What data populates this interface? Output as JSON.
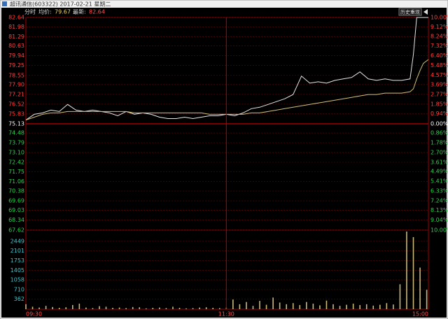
{
  "chart_data": [
    {
      "type": "line",
      "title": "超讯通信(603322) 2017-02-21 星期二",
      "mode": "分时",
      "readouts": [
        {
          "label": "均价:",
          "value": 79.67
        },
        {
          "label": "最新:",
          "value": 82.64
        }
      ],
      "button": "历史重现",
      "reference": 75.13,
      "xlim": [
        0,
        241
      ],
      "xticks": [
        {
          "value": 0,
          "label": "09:30"
        },
        {
          "value": 120,
          "label": "11:30"
        },
        {
          "value": 241,
          "label": "15:00"
        }
      ],
      "ylim": [
        67.62,
        82.64
      ],
      "yticks": [
        82.64,
        81.98,
        81.29,
        80.63,
        79.94,
        79.25,
        78.55,
        {
          "value": 77.9,
          "label": "77.90"
        },
        77.21,
        76.52,
        75.83,
        75.13,
        74.48,
        73.79,
        {
          "value": 73.1,
          "label": "73.10"
        },
        72.42,
        71.75,
        71.06,
        70.38,
        69.69,
        69.03,
        68.34,
        67.62
      ],
      "y2lim": [
        -10,
        10
      ],
      "y2ticks": [
        {
          "value": 10,
          "label": "10.00%"
        },
        {
          "value": 9.12,
          "label": "9.12%"
        },
        {
          "value": 8.24,
          "label": "8.24%"
        },
        {
          "value": 7.32,
          "label": "7.32%"
        },
        {
          "value": 6.4,
          "label": "6.40%"
        },
        {
          "value": 5.48,
          "label": "5.48%"
        },
        {
          "value": 4.57,
          "label": "4.57%"
        },
        {
          "value": 3.69,
          "label": "3.69%"
        },
        {
          "value": 2.77,
          "label": "2.77%"
        },
        {
          "value": 1.85,
          "label": "1.85%"
        },
        {
          "value": 0.94,
          "label": "0.94%"
        },
        {
          "value": 0,
          "label": "0.00%"
        },
        {
          "value": -0.86,
          "label": "0.86%"
        },
        {
          "value": -1.78,
          "label": "1.78%"
        },
        {
          "value": -2.7,
          "label": "2.70%"
        },
        {
          "value": -3.61,
          "label": "3.61%"
        },
        {
          "value": -4.49,
          "label": "4.49%"
        },
        {
          "value": -5.41,
          "label": "5.41%"
        },
        {
          "value": -6.33,
          "label": "6.33%"
        },
        {
          "value": -7.24,
          "label": "7.24%"
        },
        {
          "value": -8.13,
          "label": "8.13%"
        },
        {
          "value": -9.04,
          "label": "9.04%"
        },
        {
          "value": -10,
          "label": "10.00%"
        }
      ],
      "x": [
        0,
        5,
        10,
        15,
        20,
        25,
        30,
        35,
        40,
        45,
        50,
        55,
        60,
        65,
        70,
        75,
        80,
        85,
        90,
        95,
        100,
        105,
        110,
        115,
        120,
        125,
        130,
        135,
        140,
        145,
        150,
        155,
        160,
        165,
        170,
        175,
        180,
        185,
        190,
        195,
        200,
        205,
        210,
        215,
        220,
        225,
        230,
        232,
        234,
        236,
        238,
        241
      ],
      "series": [
        {
          "color": "#e6e6e6",
          "values": [
            75.4,
            75.8,
            75.9,
            76.1,
            76.0,
            76.5,
            76.1,
            76.0,
            76.1,
            76.0,
            75.9,
            75.7,
            76.0,
            75.8,
            75.9,
            75.8,
            75.6,
            75.5,
            75.5,
            75.6,
            75.5,
            75.6,
            75.7,
            75.7,
            75.8,
            75.7,
            75.9,
            76.2,
            76.3,
            76.5,
            76.7,
            76.9,
            77.2,
            78.5,
            78.0,
            78.1,
            78.0,
            78.2,
            78.3,
            78.4,
            78.8,
            78.3,
            78.2,
            78.3,
            78.2,
            78.2,
            78.3,
            80.0,
            82.64,
            82.64,
            82.64,
            82.64
          ]
        },
        {
          "color": "#d2bf7a",
          "values": [
            75.4,
            75.6,
            75.8,
            75.9,
            75.9,
            76.0,
            76.0,
            76.0,
            76.0,
            76.0,
            76.0,
            76.0,
            76.0,
            75.9,
            75.9,
            75.9,
            75.9,
            75.9,
            75.9,
            75.9,
            75.9,
            75.9,
            75.8,
            75.8,
            75.8,
            75.8,
            75.8,
            75.9,
            75.9,
            76.0,
            76.1,
            76.2,
            76.3,
            76.4,
            76.5,
            76.6,
            76.7,
            76.8,
            76.9,
            77.0,
            77.1,
            77.2,
            77.2,
            77.3,
            77.3,
            77.3,
            77.4,
            77.6,
            78.3,
            78.9,
            79.4,
            79.67
          ]
        }
      ]
    },
    {
      "type": "bar",
      "color": "#c9b77c",
      "xlim": [
        0,
        241
      ],
      "ylim": [
        0,
        2850
      ],
      "yticks": [
        2449,
        2101,
        1753,
        1405,
        1058,
        710,
        362
      ],
      "x": [
        0,
        4,
        8,
        12,
        16,
        20,
        24,
        28,
        32,
        36,
        40,
        44,
        48,
        52,
        56,
        60,
        64,
        68,
        72,
        76,
        80,
        84,
        88,
        92,
        96,
        100,
        104,
        108,
        112,
        116,
        120,
        124,
        128,
        132,
        136,
        140,
        144,
        148,
        152,
        156,
        160,
        164,
        168,
        172,
        176,
        180,
        184,
        188,
        192,
        196,
        200,
        204,
        208,
        212,
        216,
        220,
        224,
        228,
        232,
        236,
        240
      ],
      "values": [
        180,
        90,
        60,
        120,
        80,
        50,
        70,
        150,
        200,
        60,
        40,
        110,
        90,
        50,
        60,
        40,
        80,
        70,
        30,
        50,
        60,
        40,
        90,
        50,
        30,
        40,
        60,
        70,
        50,
        40,
        60,
        350,
        180,
        260,
        120,
        300,
        160,
        420,
        240,
        180,
        220,
        150,
        260,
        200,
        140,
        310,
        180,
        120,
        160,
        200,
        150,
        180,
        130,
        160,
        220,
        170,
        900,
        2800,
        2600,
        1500,
        700
      ]
    }
  ]
}
